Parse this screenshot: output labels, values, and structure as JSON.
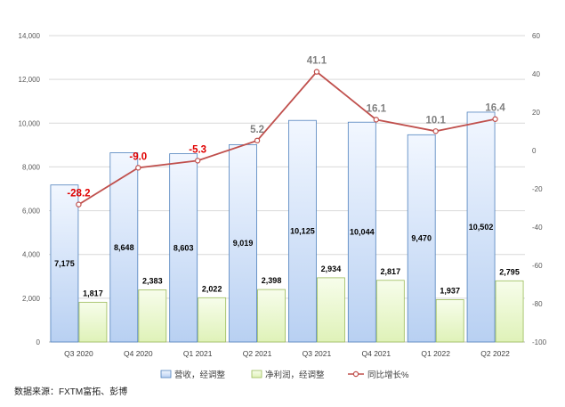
{
  "chart_data": {
    "type": "bar+line",
    "categories": [
      "Q3 2020",
      "Q4 2020",
      "Q1 2021",
      "Q2 2021",
      "Q3 2021",
      "Q4 2021",
      "Q1 2022",
      "Q2 2022"
    ],
    "series": [
      {
        "name": "营收，经调整",
        "type": "bar",
        "axis": "left",
        "values": [
          7175,
          8648,
          8603,
          9019,
          10125,
          10044,
          9470,
          10502
        ],
        "labels": [
          "7,175",
          "8,648",
          "8,603",
          "9,019",
          "10,125",
          "10,044",
          "9,470",
          "10,502"
        ],
        "color": "#b8d0f2"
      },
      {
        "name": "净利润，经调整",
        "type": "bar",
        "axis": "left",
        "values": [
          1817,
          2383,
          2022,
          2398,
          2934,
          2817,
          1937,
          2795
        ],
        "labels": [
          "1,817",
          "2,383",
          "2,022",
          "2,398",
          "2,934",
          "2,817",
          "1,937",
          "2,795"
        ],
        "color": "#dff2b8"
      },
      {
        "name": "同比增长%",
        "type": "line",
        "axis": "right",
        "values": [
          -28.2,
          -9.0,
          -5.3,
          5.2,
          41.1,
          16.1,
          10.1,
          16.4
        ],
        "labels": [
          "-28.2",
          "-9.0",
          "-5.3",
          "5.2",
          "41.1",
          "16.1",
          "10.1",
          "16.4"
        ],
        "color": "#c0504d"
      }
    ],
    "left_axis": {
      "min": 0,
      "max": 14000,
      "step": 2000,
      "ticks": [
        "0",
        "2,000",
        "4,000",
        "6,000",
        "8,000",
        "10,000",
        "12,000",
        "14,000"
      ]
    },
    "right_axis": {
      "min": -100,
      "max": 60,
      "step": 20,
      "ticks": [
        "-100",
        "-80",
        "-60",
        "-40",
        "-20",
        "0",
        "20",
        "40",
        "60"
      ]
    },
    "negative_label_color": "#e00000",
    "positive_label_color": "#808080",
    "grid": true,
    "legend_position": "bottom"
  },
  "source": "数据来源：FXTM富拓、彭博"
}
